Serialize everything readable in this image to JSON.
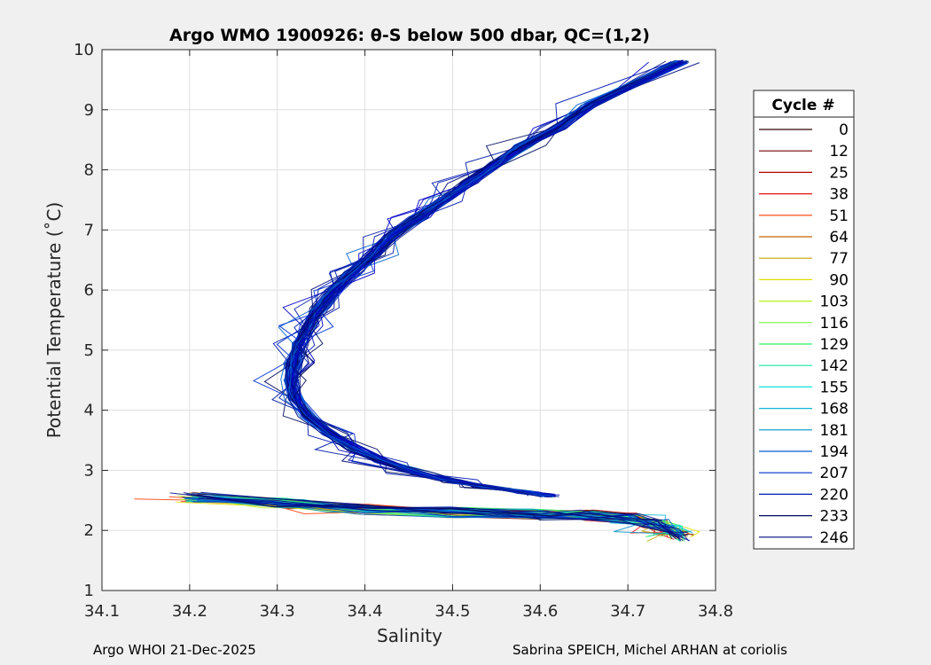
{
  "chart_data": {
    "type": "line",
    "title": "Argo WMO 1900926: θ-S below 500 dbar,  QC=(1,2)",
    "xlabel": "Salinity",
    "ylabel": "Potential Temperature (˚C)",
    "xlim": [
      34.1,
      34.8
    ],
    "ylim": [
      1,
      10
    ],
    "xticks": [
      34.1,
      34.2,
      34.3,
      34.4,
      34.5,
      34.6,
      34.7,
      34.8
    ],
    "xtick_labels": [
      "34.1",
      "34.2",
      "34.3",
      "34.4",
      "34.5",
      "34.6",
      "34.7",
      "34.8"
    ],
    "yticks": [
      1,
      2,
      3,
      4,
      5,
      6,
      7,
      8,
      9,
      10
    ],
    "ytick_labels": [
      "1",
      "2",
      "3",
      "4",
      "5",
      "6",
      "7",
      "8",
      "9",
      "10"
    ],
    "grid": true,
    "legend_title": "Cycle #",
    "legend_position": "right",
    "legend": [
      {
        "label": "0",
        "color": "#300000"
      },
      {
        "label": "12",
        "color": "#700000"
      },
      {
        "label": "25",
        "color": "#b00000"
      },
      {
        "label": "38",
        "color": "#e81010"
      },
      {
        "label": "51",
        "color": "#ff3a00"
      },
      {
        "label": "64",
        "color": "#c86400"
      },
      {
        "label": "77",
        "color": "#c8a000"
      },
      {
        "label": "90",
        "color": "#e0e000"
      },
      {
        "label": "103",
        "color": "#b8f020"
      },
      {
        "label": "116",
        "color": "#70f040"
      },
      {
        "label": "129",
        "color": "#30f060"
      },
      {
        "label": "142",
        "color": "#10e8a0"
      },
      {
        "label": "155",
        "color": "#10e0e0"
      },
      {
        "label": "168",
        "color": "#10b8d8"
      },
      {
        "label": "181",
        "color": "#0090c8"
      },
      {
        "label": "194",
        "color": "#0060d0"
      },
      {
        "label": "207",
        "color": "#0030d0"
      },
      {
        "label": "220",
        "color": "#001aa8"
      },
      {
        "label": "233",
        "color": "#000c60"
      },
      {
        "label": "246",
        "color": "#000a80"
      }
    ],
    "upper_curve": {
      "salinity": [
        34.76,
        34.66,
        34.62,
        34.58,
        34.55,
        34.52,
        34.49,
        34.46,
        34.43,
        34.41,
        34.385,
        34.365,
        34.348,
        34.335,
        34.325,
        34.318,
        34.316,
        34.32,
        34.335,
        34.36,
        34.39,
        34.42,
        34.46,
        34.5,
        34.54,
        34.58,
        34.61
      ],
      "theta": [
        9.8,
        9.1,
        8.7,
        8.4,
        8.1,
        7.8,
        7.5,
        7.2,
        6.9,
        6.6,
        6.3,
        6.0,
        5.7,
        5.4,
        5.1,
        4.8,
        4.5,
        4.2,
        3.9,
        3.6,
        3.35,
        3.15,
        2.95,
        2.82,
        2.72,
        2.64,
        2.58
      ]
    },
    "lower_curve": {
      "salinity": [
        34.2,
        34.3,
        34.4,
        34.5,
        34.6,
        34.65,
        34.7,
        34.73,
        34.75,
        34.76
      ],
      "theta": [
        2.55,
        2.45,
        2.35,
        2.3,
        2.27,
        2.25,
        2.2,
        2.1,
        2.0,
        1.9
      ]
    }
  },
  "footer": {
    "left": "Argo WHOI 21-Dec-2025",
    "right": "Sabrina SPEICH, Michel ARHAN at coriolis"
  }
}
